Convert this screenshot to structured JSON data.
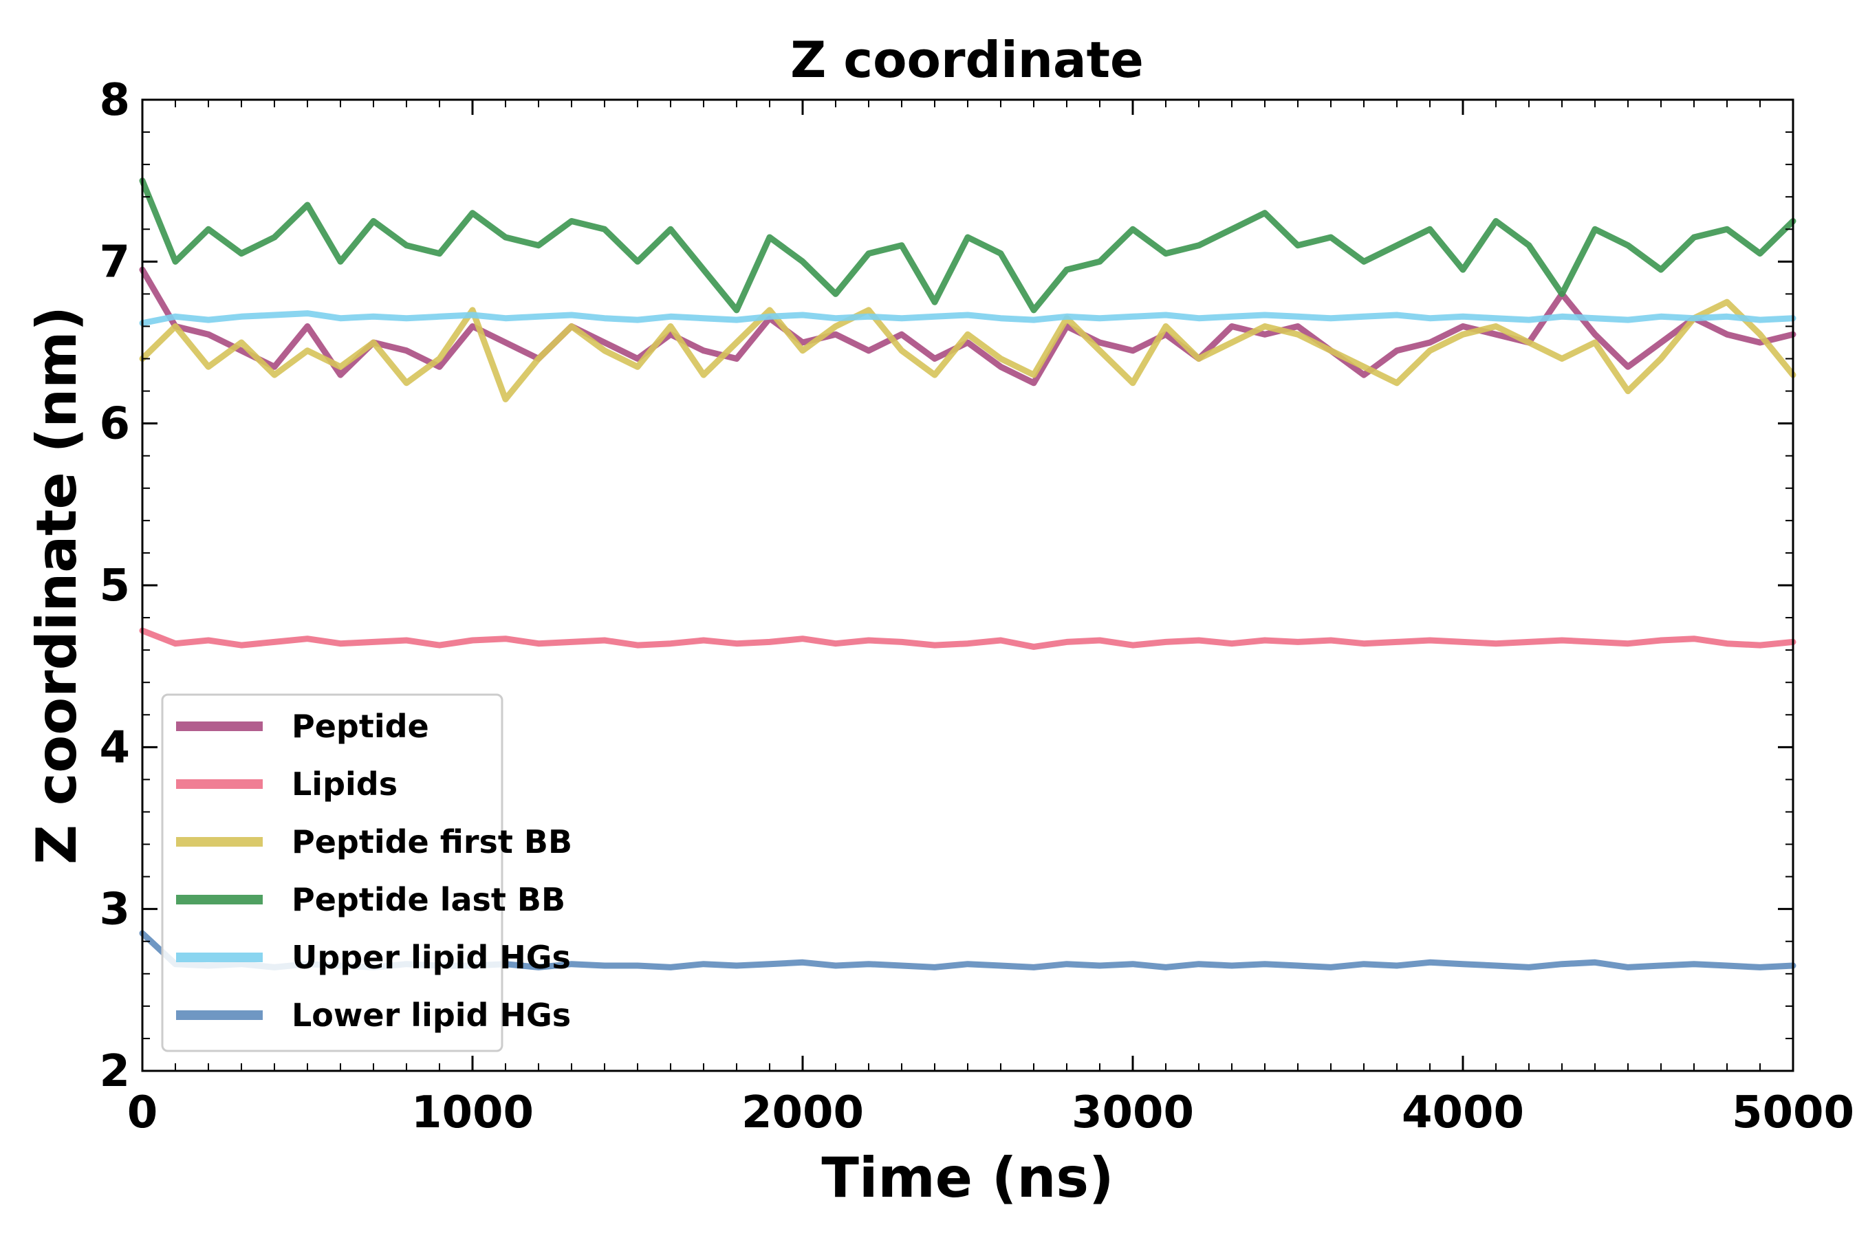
{
  "chart_data": {
    "type": "line",
    "title": "Z coordinate",
    "xlabel": "Time (ns)",
    "ylabel": "Z coordinate (nm)",
    "xlim": [
      0,
      5000
    ],
    "ylim": [
      2,
      8
    ],
    "xticks": [
      0,
      1000,
      2000,
      3000,
      4000,
      5000
    ],
    "yticks": [
      2,
      3,
      4,
      5,
      6,
      7,
      8
    ],
    "grid": false,
    "legend_position": "lower-left",
    "series": [
      {
        "name": "Peptide",
        "color": "#aa4c82",
        "x": [
          0,
          100,
          200,
          300,
          400,
          500,
          600,
          700,
          800,
          900,
          1000,
          1100,
          1200,
          1300,
          1400,
          1500,
          1600,
          1700,
          1800,
          1900,
          2000,
          2100,
          2200,
          2300,
          2400,
          2500,
          2600,
          2700,
          2800,
          2900,
          3000,
          3100,
          3200,
          3300,
          3400,
          3500,
          3600,
          3700,
          3800,
          3900,
          4000,
          4100,
          4200,
          4300,
          4400,
          4500,
          4600,
          4700,
          4800,
          4900,
          5000
        ],
        "values": [
          6.95,
          6.6,
          6.55,
          6.45,
          6.35,
          6.6,
          6.3,
          6.5,
          6.45,
          6.35,
          6.6,
          6.5,
          6.4,
          6.6,
          6.5,
          6.4,
          6.55,
          6.45,
          6.4,
          6.65,
          6.5,
          6.55,
          6.45,
          6.55,
          6.4,
          6.5,
          6.35,
          6.25,
          6.6,
          6.5,
          6.45,
          6.55,
          6.4,
          6.6,
          6.55,
          6.6,
          6.45,
          6.3,
          6.45,
          6.5,
          6.6,
          6.55,
          6.5,
          6.8,
          6.55,
          6.35,
          6.5,
          6.65,
          6.55,
          6.5,
          6.55
        ]
      },
      {
        "name": "Lipids",
        "color": "#ee7088",
        "x": [
          0,
          100,
          200,
          300,
          400,
          500,
          600,
          700,
          800,
          900,
          1000,
          1100,
          1200,
          1300,
          1400,
          1500,
          1600,
          1700,
          1800,
          1900,
          2000,
          2100,
          2200,
          2300,
          2400,
          2500,
          2600,
          2700,
          2800,
          2900,
          3000,
          3100,
          3200,
          3300,
          3400,
          3500,
          3600,
          3700,
          3800,
          3900,
          4000,
          4100,
          4200,
          4300,
          4400,
          4500,
          4600,
          4700,
          4800,
          4900,
          5000
        ],
        "values": [
          4.72,
          4.64,
          4.66,
          4.63,
          4.65,
          4.67,
          4.64,
          4.65,
          4.66,
          4.63,
          4.66,
          4.67,
          4.64,
          4.65,
          4.66,
          4.63,
          4.64,
          4.66,
          4.64,
          4.65,
          4.67,
          4.64,
          4.66,
          4.65,
          4.63,
          4.64,
          4.66,
          4.62,
          4.65,
          4.66,
          4.63,
          4.65,
          4.66,
          4.64,
          4.66,
          4.65,
          4.66,
          4.64,
          4.65,
          4.66,
          4.65,
          4.64,
          4.65,
          4.66,
          4.65,
          4.64,
          4.66,
          4.67,
          4.64,
          4.63,
          4.65
        ]
      },
      {
        "name": "Peptide first BB",
        "color": "#d6c35a",
        "x": [
          0,
          100,
          200,
          300,
          400,
          500,
          600,
          700,
          800,
          900,
          1000,
          1100,
          1200,
          1300,
          1400,
          1500,
          1600,
          1700,
          1800,
          1900,
          2000,
          2100,
          2200,
          2300,
          2400,
          2500,
          2600,
          2700,
          2800,
          2900,
          3000,
          3100,
          3200,
          3300,
          3400,
          3500,
          3600,
          3700,
          3800,
          3900,
          4000,
          4100,
          4200,
          4300,
          4400,
          4500,
          4600,
          4700,
          4800,
          4900,
          5000
        ],
        "values": [
          6.4,
          6.6,
          6.35,
          6.5,
          6.3,
          6.45,
          6.35,
          6.5,
          6.25,
          6.4,
          6.7,
          6.15,
          6.4,
          6.6,
          6.45,
          6.35,
          6.6,
          6.3,
          6.5,
          6.7,
          6.45,
          6.6,
          6.7,
          6.45,
          6.3,
          6.55,
          6.4,
          6.3,
          6.65,
          6.45,
          6.25,
          6.6,
          6.4,
          6.5,
          6.6,
          6.55,
          6.45,
          6.35,
          6.25,
          6.45,
          6.55,
          6.6,
          6.5,
          6.4,
          6.5,
          6.2,
          6.4,
          6.65,
          6.75,
          6.55,
          6.3
        ]
      },
      {
        "name": "Peptide last BB",
        "color": "#3c9650",
        "x": [
          0,
          100,
          200,
          300,
          400,
          500,
          600,
          700,
          800,
          900,
          1000,
          1100,
          1200,
          1300,
          1400,
          1500,
          1600,
          1700,
          1800,
          1900,
          2000,
          2100,
          2200,
          2300,
          2400,
          2500,
          2600,
          2700,
          2800,
          2900,
          3000,
          3100,
          3200,
          3300,
          3400,
          3500,
          3600,
          3700,
          3800,
          3900,
          4000,
          4100,
          4200,
          4300,
          4400,
          4500,
          4600,
          4700,
          4800,
          4900,
          5000
        ],
        "values": [
          7.5,
          7.0,
          7.2,
          7.05,
          7.15,
          7.35,
          7.0,
          7.25,
          7.1,
          7.05,
          7.3,
          7.15,
          7.1,
          7.25,
          7.2,
          7.0,
          7.2,
          6.95,
          6.7,
          7.15,
          7.0,
          6.8,
          7.05,
          7.1,
          6.75,
          7.15,
          7.05,
          6.7,
          6.95,
          7.0,
          7.2,
          7.05,
          7.1,
          7.2,
          7.3,
          7.1,
          7.15,
          7.0,
          7.1,
          7.2,
          6.95,
          7.25,
          7.1,
          6.8,
          7.2,
          7.1,
          6.95,
          7.15,
          7.2,
          7.05,
          7.25
        ]
      },
      {
        "name": "Upper lipid HGs",
        "color": "#7dd0ee",
        "x": [
          0,
          100,
          200,
          300,
          400,
          500,
          600,
          700,
          800,
          900,
          1000,
          1100,
          1200,
          1300,
          1400,
          1500,
          1600,
          1700,
          1800,
          1900,
          2000,
          2100,
          2200,
          2300,
          2400,
          2500,
          2600,
          2700,
          2800,
          2900,
          3000,
          3100,
          3200,
          3300,
          3400,
          3500,
          3600,
          3700,
          3800,
          3900,
          4000,
          4100,
          4200,
          4300,
          4400,
          4500,
          4600,
          4700,
          4800,
          4900,
          5000
        ],
        "values": [
          6.62,
          6.66,
          6.64,
          6.66,
          6.67,
          6.68,
          6.65,
          6.66,
          6.65,
          6.66,
          6.67,
          6.65,
          6.66,
          6.67,
          6.65,
          6.64,
          6.66,
          6.65,
          6.64,
          6.66,
          6.67,
          6.65,
          6.66,
          6.65,
          6.66,
          6.67,
          6.65,
          6.64,
          6.66,
          6.65,
          6.66,
          6.67,
          6.65,
          6.66,
          6.67,
          6.66,
          6.65,
          6.66,
          6.67,
          6.65,
          6.66,
          6.65,
          6.64,
          6.66,
          6.65,
          6.64,
          6.66,
          6.65,
          6.66,
          6.64,
          6.65
        ]
      },
      {
        "name": "Lower lipid HGs",
        "color": "#5f8cbc",
        "x": [
          0,
          100,
          200,
          300,
          400,
          500,
          600,
          700,
          800,
          900,
          1000,
          1100,
          1200,
          1300,
          1400,
          1500,
          1600,
          1700,
          1800,
          1900,
          2000,
          2100,
          2200,
          2300,
          2400,
          2500,
          2600,
          2700,
          2800,
          2900,
          3000,
          3100,
          3200,
          3300,
          3400,
          3500,
          3600,
          3700,
          3800,
          3900,
          4000,
          4100,
          4200,
          4300,
          4400,
          4500,
          4600,
          4700,
          4800,
          4900,
          5000
        ],
        "values": [
          2.85,
          2.66,
          2.65,
          2.66,
          2.64,
          2.66,
          2.65,
          2.64,
          2.66,
          2.65,
          2.65,
          2.66,
          2.64,
          2.66,
          2.65,
          2.65,
          2.64,
          2.66,
          2.65,
          2.66,
          2.67,
          2.65,
          2.66,
          2.65,
          2.64,
          2.66,
          2.65,
          2.64,
          2.66,
          2.65,
          2.66,
          2.64,
          2.66,
          2.65,
          2.66,
          2.65,
          2.64,
          2.66,
          2.65,
          2.67,
          2.66,
          2.65,
          2.64,
          2.66,
          2.67,
          2.64,
          2.65,
          2.66,
          2.65,
          2.64,
          2.65
        ]
      }
    ]
  }
}
